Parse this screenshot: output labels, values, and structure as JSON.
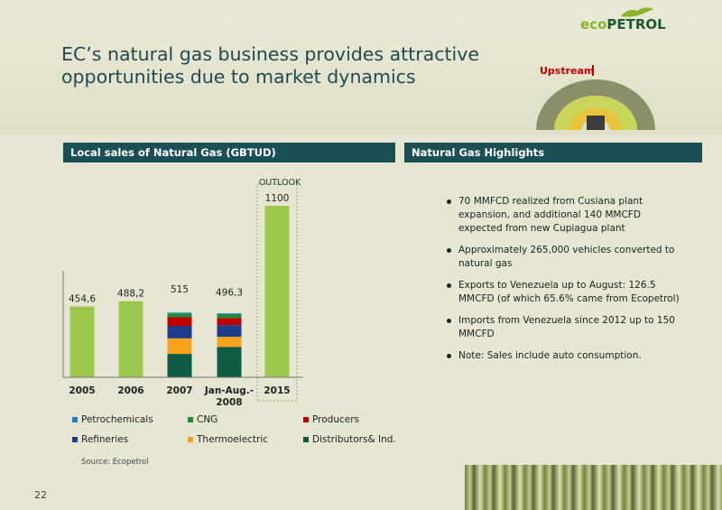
{
  "slide": {
    "title": "EC’s natural gas business provides attractive opportunities due to market dynamics",
    "logo_eco": "eco",
    "logo_petrol": "PETROL",
    "segment_label": "Upstream",
    "page_number": "22",
    "source": "Source: Ecopetrol"
  },
  "left_panel": {
    "header": "Local sales of Natural Gas (GBTUD)"
  },
  "right_panel": {
    "header": "Natural Gas Highlights",
    "bullets": [
      "70 MMFCD realized from Cusiana plant expansion, and additional 140 MMCFD expected from new Cupiagua plant",
      "Approximately 265,000 vehicles converted to natural gas",
      "Exports to Venezuela up to August: 126.5 MMCFD (of which 65.6% came from Ecopetrol)",
      "Imports from Venezuela since 2012 up to 150 MMCFD",
      "Note: Sales include auto consumption."
    ]
  },
  "chart_data": {
    "type": "bar",
    "categories": [
      "2005",
      "2006",
      "2007",
      "Jan-Aug.-2008",
      "2015"
    ],
    "totals": [
      454.6,
      488.2,
      515,
      496.3,
      1100
    ],
    "total_labels": [
      "454,6",
      "488,2",
      "515",
      "496,3",
      "1100"
    ],
    "outlook_label": "OUTLOOK",
    "outlook_category": "2015",
    "series": [
      {
        "name": "Distributors& Ind.",
        "color": "#0f5c45",
        "values": [
          null,
          null,
          150,
          195,
          null
        ]
      },
      {
        "name": "Thermoelectric",
        "color": "#f7a21b",
        "values": [
          null,
          null,
          100,
          65,
          null
        ]
      },
      {
        "name": "Refineries",
        "color": "#1f3b8c",
        "values": [
          null,
          null,
          80,
          75,
          null
        ]
      },
      {
        "name": "Producers",
        "color": "#c00000",
        "values": [
          null,
          null,
          55,
          45,
          null
        ]
      },
      {
        "name": "CNG",
        "color": "#1f8a3a",
        "values": [
          null,
          null,
          25,
          25,
          null
        ]
      },
      {
        "name": "Petrochemicals",
        "color": "#1e7fc4",
        "values": [
          null,
          null,
          5,
          5,
          null
        ]
      }
    ],
    "total_color": "#9cc84d",
    "legend_order": [
      "Petrochemicals",
      "CNG",
      "Producers",
      "Refineries",
      "Thermoelectric",
      "Distributors& Ind."
    ],
    "ylim": [
      0,
      1200
    ],
    "xlabel": "",
    "ylabel": ""
  }
}
